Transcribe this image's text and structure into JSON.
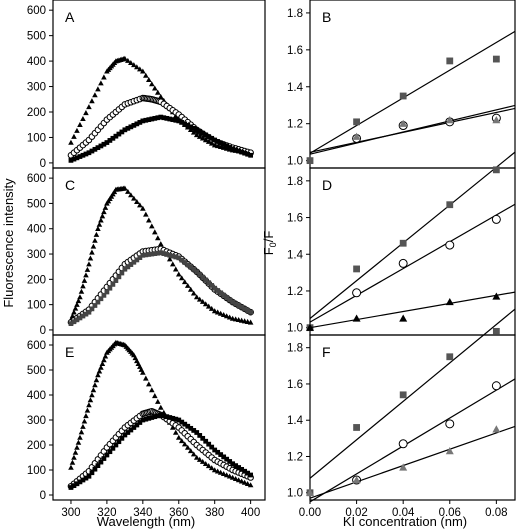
{
  "figure": {
    "ylabel_left": "Fluorescence intensity",
    "ylabel_right_main": "F",
    "ylabel_right_sub1": "0",
    "ylabel_right_tail": "/F",
    "xlabel_left": "Wavelength (nm)",
    "xlabel_right": "KI concentration (nm)"
  },
  "chart_data": [
    {
      "panel": "A",
      "type": "scatter",
      "xlim": [
        290,
        408
      ],
      "ylim": [
        -20,
        640
      ],
      "xticks": [],
      "yticks": [
        0,
        100,
        200,
        300,
        400,
        500,
        600
      ],
      "series": [
        {
          "marker": "triangle",
          "color": "#000000",
          "x": [
            300,
            310,
            320,
            325,
            330,
            340,
            350,
            360,
            370,
            380,
            390,
            400
          ],
          "values": [
            80,
            220,
            360,
            400,
            410,
            360,
            260,
            170,
            110,
            70,
            50,
            40
          ]
        },
        {
          "marker": "open-circle",
          "color": "#000000",
          "x": [
            300,
            310,
            320,
            330,
            340,
            345,
            350,
            360,
            370,
            380,
            390,
            400
          ],
          "values": [
            30,
            90,
            170,
            230,
            255,
            250,
            240,
            190,
            130,
            85,
            60,
            40
          ]
        },
        {
          "marker": "square",
          "color": "#000000",
          "x": [
            300,
            310,
            320,
            330,
            340,
            350,
            360,
            370,
            380,
            390,
            400
          ],
          "values": [
            10,
            40,
            80,
            130,
            165,
            180,
            165,
            130,
            90,
            55,
            30
          ]
        }
      ]
    },
    {
      "panel": "B",
      "type": "scatter",
      "xlim": [
        0,
        0.088
      ],
      "ylim": [
        0.96,
        1.87
      ],
      "xticks": [],
      "yticks": [
        1.0,
        1.2,
        1.4,
        1.6,
        1.8
      ],
      "series": [
        {
          "marker": "square",
          "color": "#555555",
          "x": [
            0,
            0.02,
            0.04,
            0.06,
            0.08
          ],
          "values": [
            1.0,
            1.21,
            1.35,
            1.54,
            1.55
          ],
          "fit": [
            1.04,
            7.5
          ]
        },
        {
          "marker": "open-circle",
          "color": "#000000",
          "x": [
            0.02,
            0.04,
            0.06,
            0.08
          ],
          "values": [
            1.12,
            1.19,
            1.21,
            1.23
          ],
          "fit": [
            1.045,
            2.7
          ]
        },
        {
          "marker": "triangle",
          "color": "#777777",
          "x": [
            0.02,
            0.04,
            0.06,
            0.08
          ],
          "values": [
            1.13,
            1.2,
            1.22,
            1.22
          ],
          "fit": [
            1.035,
            3.0
          ]
        }
      ]
    },
    {
      "panel": "C",
      "type": "scatter",
      "xlim": [
        290,
        408
      ],
      "ylim": [
        -20,
        640
      ],
      "xticks": [],
      "yticks": [
        0,
        100,
        200,
        300,
        400,
        500,
        600
      ],
      "series": [
        {
          "marker": "triangle",
          "color": "#000000",
          "x": [
            300,
            305,
            310,
            315,
            320,
            325,
            330,
            340,
            350,
            360,
            370,
            380,
            390,
            400
          ],
          "values": [
            40,
            130,
            260,
            400,
            500,
            555,
            560,
            480,
            340,
            220,
            130,
            75,
            45,
            30
          ]
        },
        {
          "marker": "open-circle",
          "color": "#000000",
          "x": [
            300,
            310,
            320,
            330,
            340,
            350,
            360,
            370,
            380,
            390,
            400
          ],
          "values": [
            30,
            80,
            170,
            260,
            310,
            320,
            290,
            230,
            160,
            110,
            70
          ]
        },
        {
          "marker": "square",
          "color": "#444444",
          "x": [
            300,
            310,
            320,
            330,
            340,
            350,
            360,
            370,
            380,
            390,
            400
          ],
          "values": [
            25,
            70,
            150,
            240,
            295,
            305,
            285,
            230,
            165,
            110,
            70
          ]
        }
      ]
    },
    {
      "panel": "D",
      "type": "scatter",
      "xlim": [
        0,
        0.088
      ],
      "ylim": [
        0.96,
        1.87
      ],
      "xticks": [],
      "yticks": [
        1.0,
        1.2,
        1.4,
        1.6,
        1.8
      ],
      "series": [
        {
          "marker": "square",
          "color": "#555555",
          "x": [
            0,
            0.02,
            0.04,
            0.06,
            0.08
          ],
          "values": [
            1.0,
            1.32,
            1.46,
            1.67,
            1.86
          ],
          "fit": [
            1.05,
            10.3
          ]
        },
        {
          "marker": "open-circle",
          "color": "#000000",
          "x": [
            0.02,
            0.04,
            0.06,
            0.08
          ],
          "values": [
            1.19,
            1.35,
            1.45,
            1.59
          ],
          "fit": [
            1.03,
            7.3
          ]
        },
        {
          "marker": "triangle",
          "color": "#000000",
          "x": [
            0,
            0.02,
            0.04,
            0.06,
            0.08
          ],
          "values": [
            1.0,
            1.05,
            1.05,
            1.14,
            1.17
          ],
          "fit": [
            1.0,
            2.2
          ]
        }
      ]
    },
    {
      "panel": "E",
      "type": "scatter",
      "xlim": [
        290,
        408
      ],
      "ylim": [
        -20,
        640
      ],
      "xticks": [
        300,
        320,
        340,
        360,
        380,
        400
      ],
      "yticks": [
        0,
        100,
        200,
        300,
        400,
        500,
        600
      ],
      "series": [
        {
          "marker": "triangle",
          "color": "#000000",
          "x": [
            300,
            305,
            310,
            315,
            320,
            325,
            330,
            335,
            340,
            350,
            360,
            370,
            380,
            390,
            400
          ],
          "values": [
            110,
            230,
            360,
            480,
            570,
            610,
            600,
            560,
            490,
            350,
            230,
            150,
            100,
            70,
            40
          ]
        },
        {
          "marker": "open-circle",
          "color": "#000000",
          "x": [
            300,
            310,
            320,
            330,
            340,
            345,
            350,
            360,
            370,
            380,
            390,
            400
          ],
          "values": [
            35,
            95,
            190,
            270,
            325,
            335,
            320,
            270,
            200,
            140,
            100,
            70
          ]
        },
        {
          "marker": "square",
          "color": "#000000",
          "x": [
            300,
            310,
            320,
            330,
            340,
            350,
            360,
            370,
            380,
            390,
            400
          ],
          "values": [
            30,
            75,
            160,
            240,
            300,
            320,
            300,
            250,
            180,
            125,
            80
          ]
        }
      ]
    },
    {
      "panel": "F",
      "type": "scatter",
      "xlim": [
        0,
        0.088
      ],
      "ylim": [
        0.96,
        1.87
      ],
      "xticks": [
        0.0,
        0.02,
        0.04,
        0.06,
        0.08
      ],
      "xtick_labels": [
        "0.00",
        "0.02",
        "0.04",
        "0.06",
        "0.08"
      ],
      "yticks": [
        1.0,
        1.2,
        1.4,
        1.6,
        1.8
      ],
      "series": [
        {
          "marker": "square",
          "color": "#555555",
          "x": [
            0,
            0.02,
            0.04,
            0.06,
            0.08
          ],
          "values": [
            1.0,
            1.36,
            1.54,
            1.75,
            1.89
          ],
          "fit": [
            1.08,
            10.6
          ]
        },
        {
          "marker": "open-circle",
          "color": "#000000",
          "x": [
            0.02,
            0.04,
            0.06,
            0.08
          ],
          "values": [
            1.07,
            1.27,
            1.38,
            1.59
          ],
          "fit": [
            0.95,
            7.7
          ]
        },
        {
          "marker": "triangle",
          "color": "#777777",
          "x": [
            0,
            0.02,
            0.04,
            0.06,
            0.08
          ],
          "values": [
            1.0,
            1.07,
            1.14,
            1.23,
            1.35
          ],
          "fit": [
            0.97,
            4.5
          ]
        }
      ]
    }
  ]
}
